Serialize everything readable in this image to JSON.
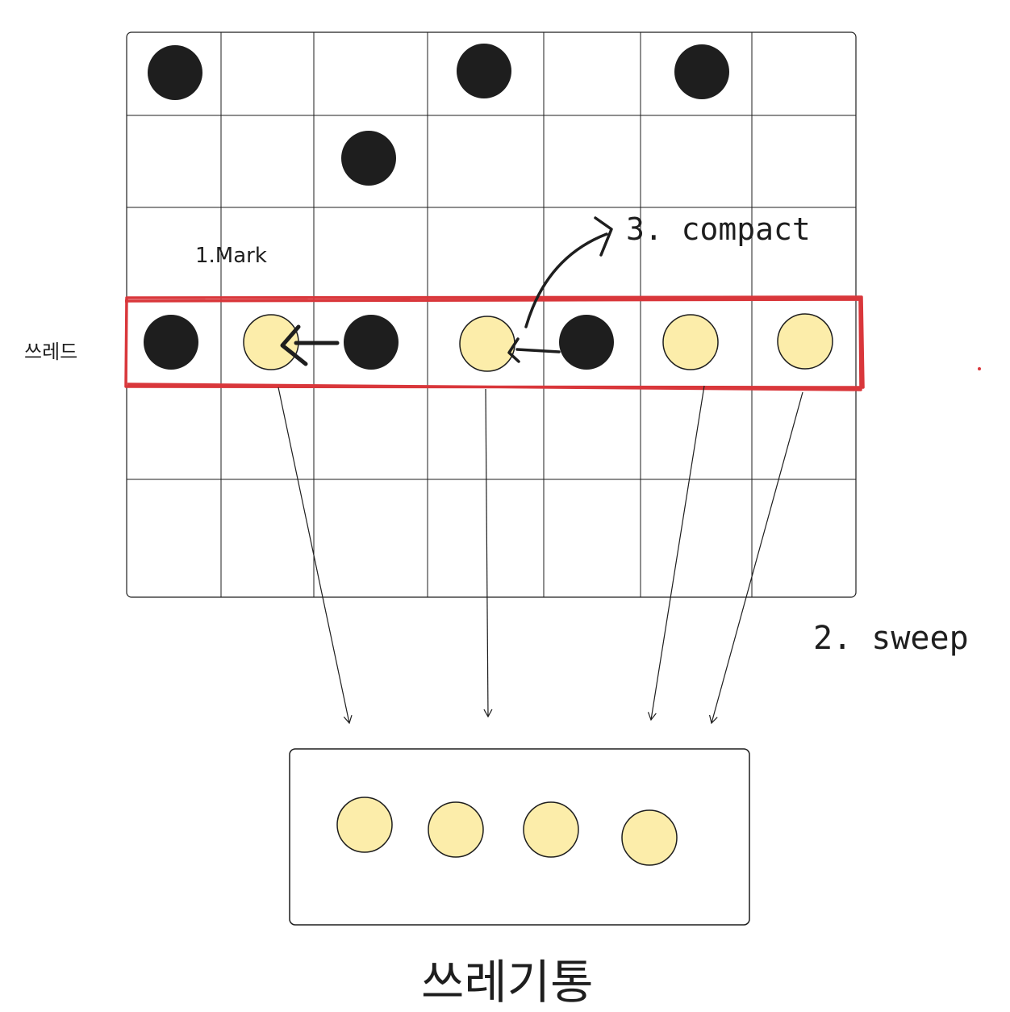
{
  "labels": {
    "mark": "1.Mark",
    "sweep": "2. sweep",
    "compact": "3. compact",
    "thread": "쓰레드",
    "trash_bin": "쓰레기통"
  },
  "colors": {
    "stroke": "#1e1e1e",
    "live_object": "#1e1e1e",
    "garbage_object": "#fcedaa",
    "highlight": "#d9373b"
  },
  "heap_grid": {
    "rows": 6,
    "cols": 7,
    "live_objects": [
      [
        0,
        0
      ],
      [
        0,
        3
      ],
      [
        0,
        5
      ],
      [
        1,
        2
      ],
      [
        3,
        0
      ],
      [
        3,
        2
      ],
      [
        3,
        4
      ]
    ],
    "garbage_objects": [
      [
        3,
        1
      ],
      [
        3,
        3
      ],
      [
        3,
        5
      ],
      [
        3,
        6
      ]
    ],
    "highlighted_row": 3
  },
  "trash_bin": {
    "object_count": 4
  }
}
